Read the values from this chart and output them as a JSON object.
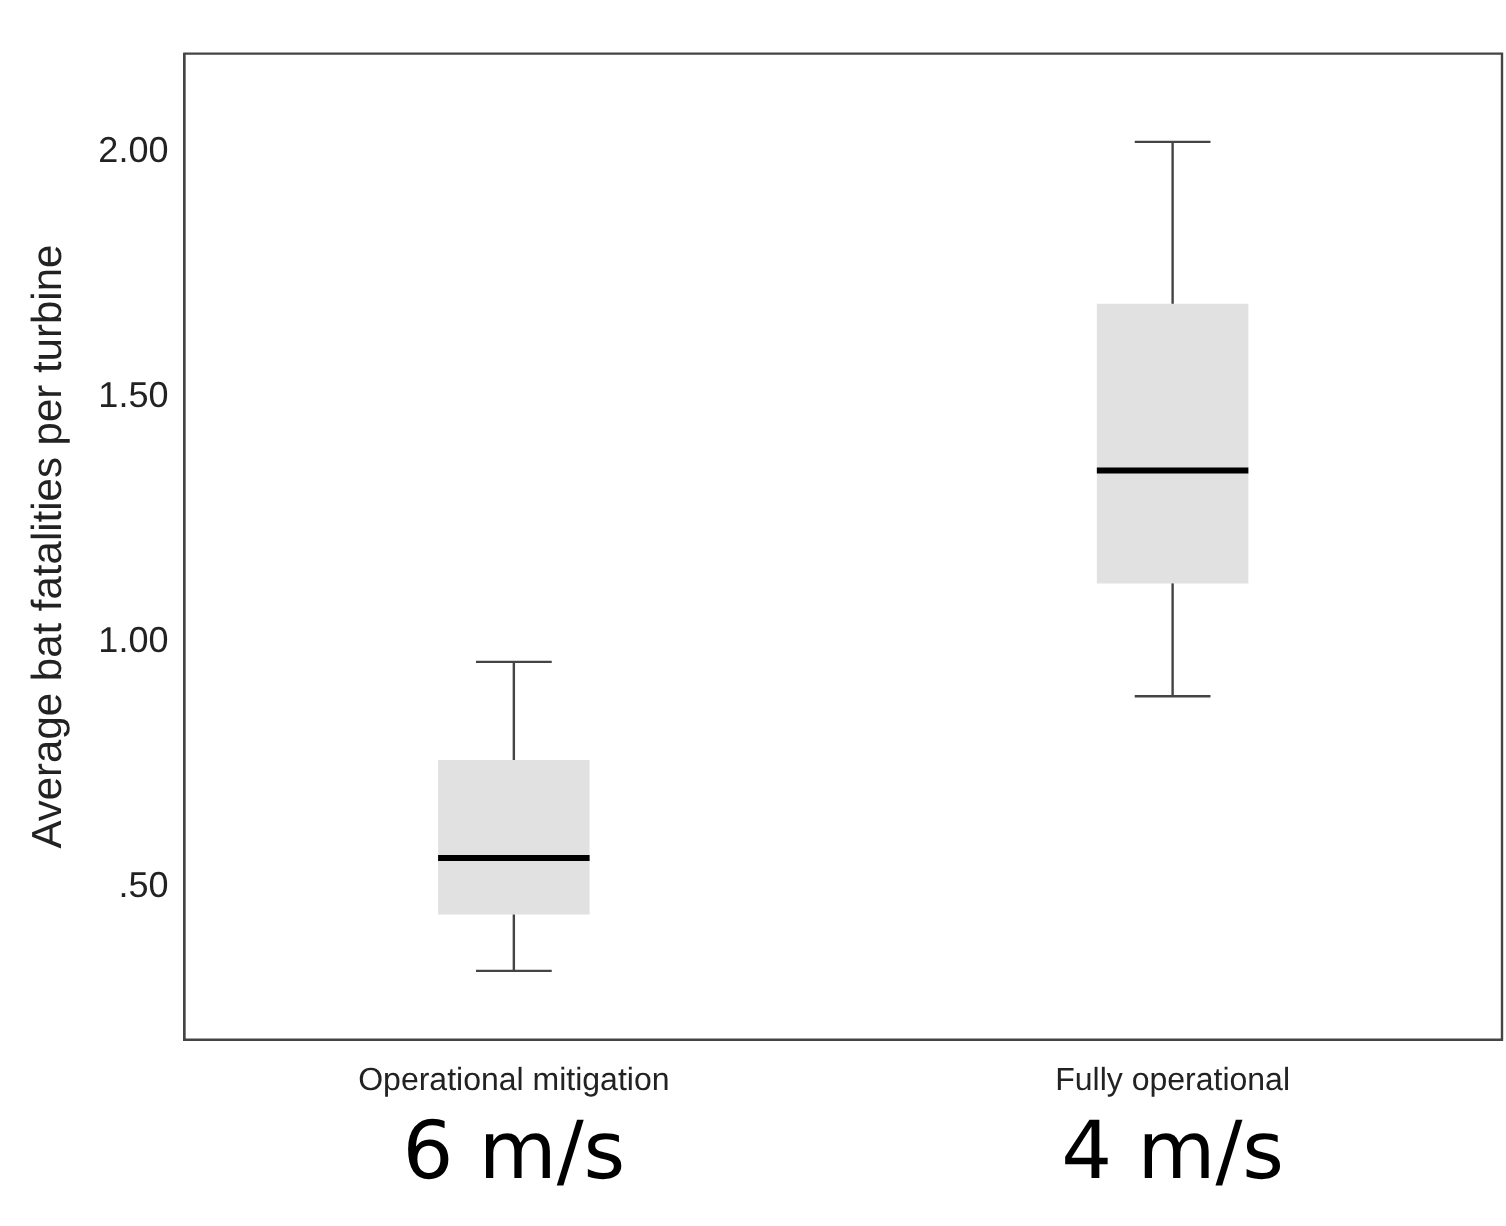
{
  "chart_data": {
    "type": "box",
    "ylabel": "Average bat fatalities per turbine",
    "categories": [
      "Operational mitigation",
      "Fully operational"
    ],
    "boxes": [
      {
        "low": 0.33,
        "q1": 0.445,
        "median": 0.56,
        "q3": 0.76,
        "high": 0.96
      },
      {
        "low": 0.89,
        "q1": 1.12,
        "median": 1.35,
        "q3": 1.69,
        "high": 2.02
      }
    ],
    "color": "#e1e1e1",
    "ylim": [
      0.19,
      2.2
    ],
    "yticks": [
      {
        "value": 0.5,
        "label": ".50"
      },
      {
        "value": 1,
        "label": "1.00"
      },
      {
        "value": 1.5,
        "label": "1.50"
      },
      {
        "value": 2,
        "label": "2.00"
      }
    ],
    "grid": false,
    "legend": false,
    "annotations": [
      "6 m/s",
      "4 m/s"
    ]
  }
}
